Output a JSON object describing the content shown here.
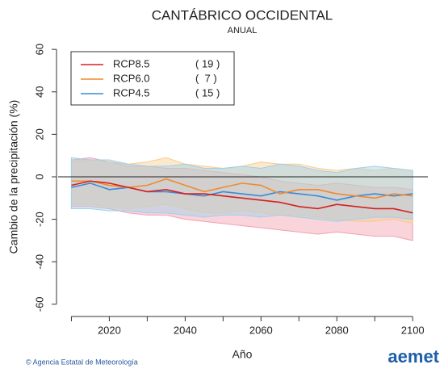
{
  "chart_data": {
    "type": "line",
    "title": "CANTÁBRICO OCCIDENTAL",
    "subtitle": "ANUAL",
    "xlabel": "Año",
    "ylabel": "Cambio de la precipitación (%)",
    "x": [
      2010,
      2015,
      2020,
      2025,
      2030,
      2035,
      2040,
      2045,
      2050,
      2055,
      2060,
      2065,
      2070,
      2075,
      2080,
      2085,
      2090,
      2095,
      2100
    ],
    "xlim": [
      2006.5,
      2104
    ],
    "xticks": [
      2020,
      2040,
      2060,
      2080,
      2100
    ],
    "xminor_ticks": [
      2010,
      2030,
      2050,
      2070,
      2090
    ],
    "ylim": [
      -65,
      65
    ],
    "yticks": [
      -60,
      -40,
      -20,
      0,
      20,
      40,
      60
    ],
    "reference_line": 0,
    "legend": "top-left",
    "series": [
      {
        "name": "RCP8.5",
        "count": "( 19 )",
        "color": "#d62020",
        "band_color": "#f4a0b0",
        "values": [
          -4,
          -2,
          -3,
          -5,
          -7,
          -6,
          -8,
          -8,
          -9,
          -10,
          -11,
          -12,
          -14,
          -15,
          -13,
          -14,
          -15,
          -15,
          -17
        ],
        "upper": [
          8,
          9,
          7,
          5,
          5,
          4,
          4,
          3,
          2,
          1,
          0,
          -2,
          -3,
          -4,
          -3,
          -4,
          -5,
          -5,
          -6
        ],
        "lower": [
          -14,
          -14,
          -15,
          -17,
          -18,
          -18,
          -20,
          -21,
          -22,
          -23,
          -24,
          -25,
          -26,
          -27,
          -26,
          -27,
          -28,
          -28,
          -30
        ]
      },
      {
        "name": "RCP6.0",
        "count": "(  7 )",
        "color": "#f08a30",
        "band_color": "#f8cc90",
        "values": [
          -2,
          -2,
          -4,
          -5,
          -4,
          -1,
          -4,
          -7,
          -5,
          -3,
          -4,
          -8,
          -6,
          -6,
          -8,
          -9,
          -10,
          -8,
          -9
        ],
        "upper": [
          8,
          8,
          7,
          6,
          7,
          9,
          6,
          5,
          4,
          5,
          7,
          6,
          6,
          4,
          3,
          4,
          3,
          4,
          3
        ],
        "lower": [
          -13,
          -13,
          -14,
          -15,
          -14,
          -13,
          -15,
          -17,
          -17,
          -16,
          -17,
          -18,
          -18,
          -19,
          -20,
          -21,
          -21,
          -20,
          -22
        ]
      },
      {
        "name": "RCP4.5",
        "count": "( 15 )",
        "color": "#3a8ad8",
        "band_color": "#a0d0e8",
        "values": [
          -5,
          -3,
          -6,
          -5,
          -7,
          -7,
          -8,
          -9,
          -7,
          -8,
          -9,
          -7,
          -8,
          -9,
          -11,
          -9,
          -8,
          -9,
          -8
        ],
        "upper": [
          9,
          8,
          8,
          6,
          5,
          5,
          6,
          4,
          4,
          5,
          4,
          6,
          5,
          3,
          2,
          4,
          5,
          4,
          3
        ],
        "lower": [
          -15,
          -15,
          -16,
          -16,
          -17,
          -17,
          -18,
          -19,
          -18,
          -18,
          -19,
          -18,
          -19,
          -20,
          -21,
          -20,
          -19,
          -19,
          -20
        ]
      }
    ]
  },
  "footer": {
    "agency": "© Agencia Estatal de Meteorología",
    "logo": "aemet"
  }
}
